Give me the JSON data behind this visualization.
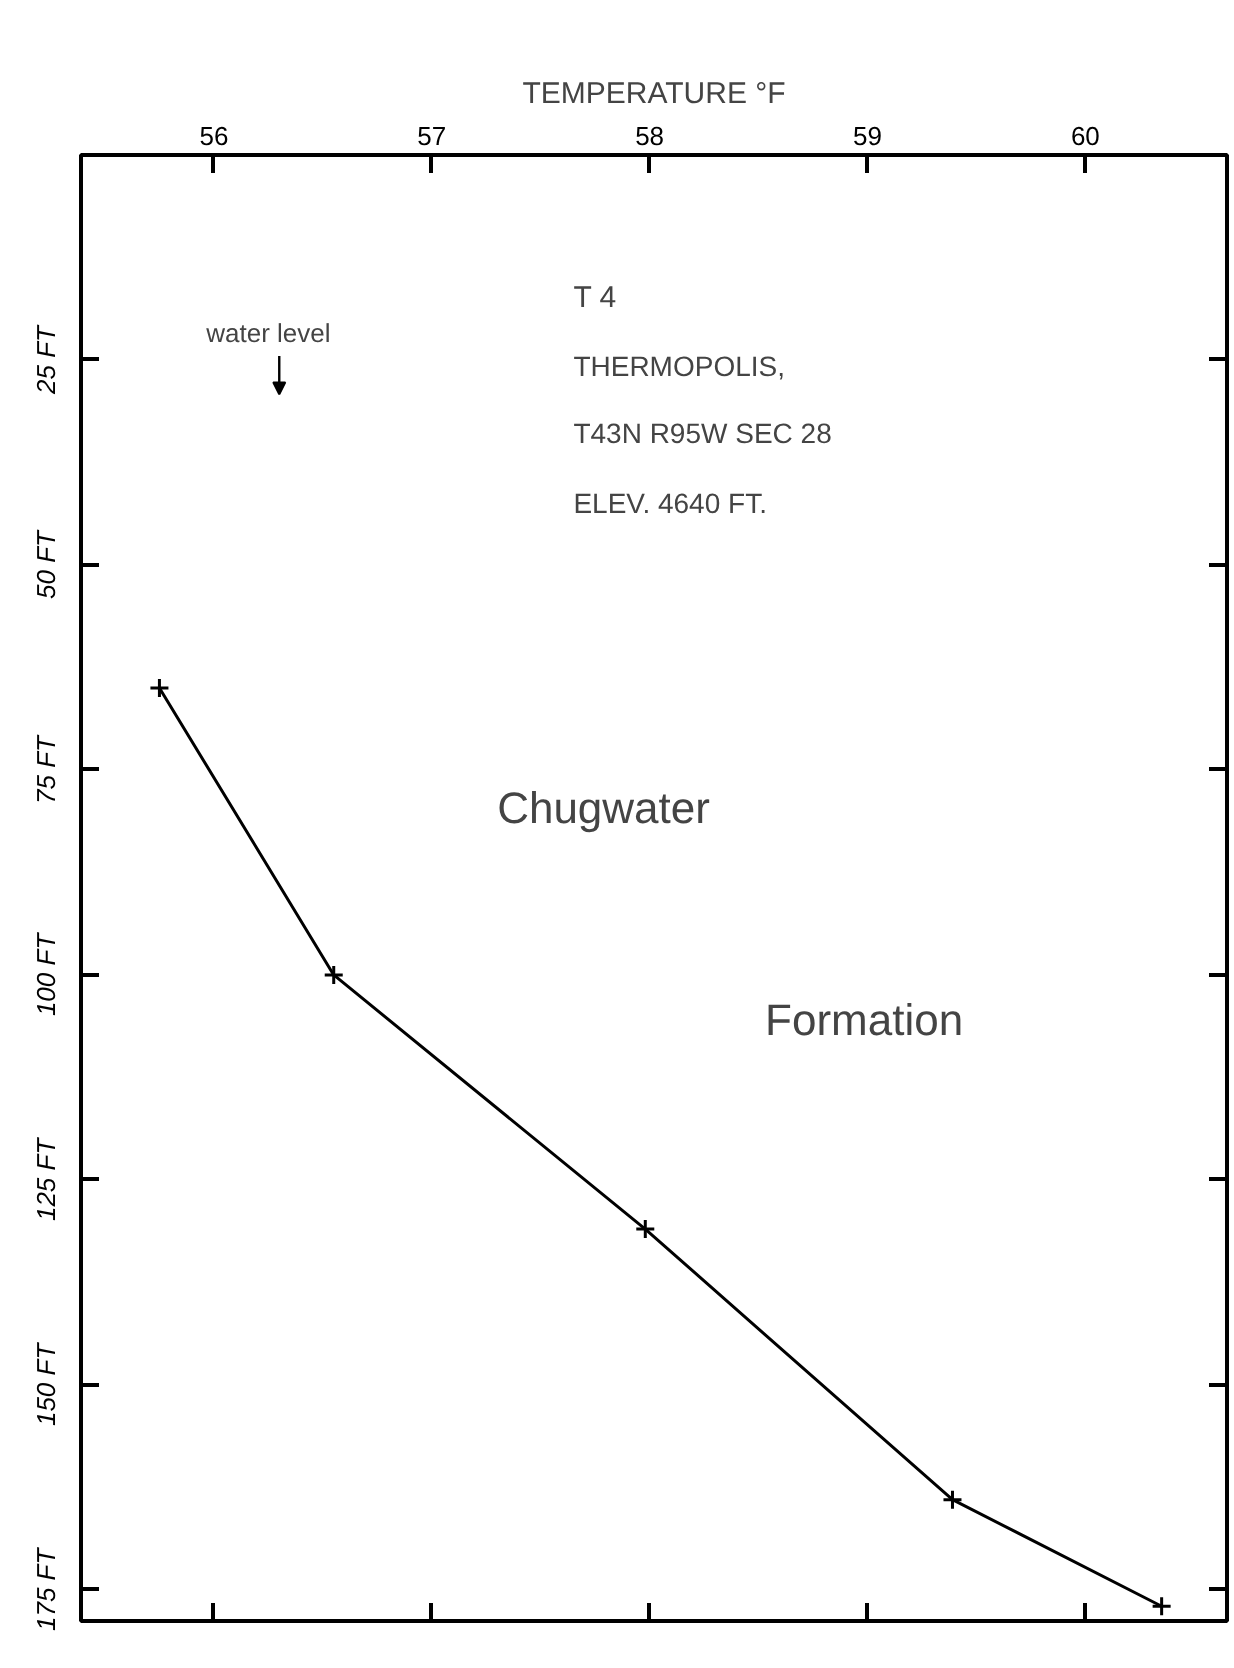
{
  "chart_data": {
    "type": "line",
    "xlabel": "TEMPERATURE °F",
    "x": [
      55.75,
      56.55,
      57.98,
      59.39,
      60.35
    ],
    "values": [
      65,
      100,
      131,
      164,
      177
    ],
    "color": "#000000",
    "marker": "cross",
    "xlim": [
      55.39,
      60.65
    ],
    "ylim": [
      178.8,
      0
    ],
    "xticks": [
      56,
      57,
      58,
      59,
      60
    ],
    "yticks": [
      {
        "value": 25,
        "label": "25 FT"
      },
      {
        "value": 50,
        "label": "50 FT"
      },
      {
        "value": 75,
        "label": "75 FT"
      },
      {
        "value": 100,
        "label": "100 FT"
      },
      {
        "value": 125,
        "label": "125 FT"
      },
      {
        "value": 150,
        "label": "150 FT"
      },
      {
        "value": 175,
        "label": "175 FT"
      }
    ],
    "grid": false,
    "annotations": [
      "water level",
      "T 4",
      "THERMOPOLIS,",
      "T43N R95W SEC 28",
      "ELEV. 4640 FT.",
      "Chugwater",
      "Formation"
    ]
  }
}
